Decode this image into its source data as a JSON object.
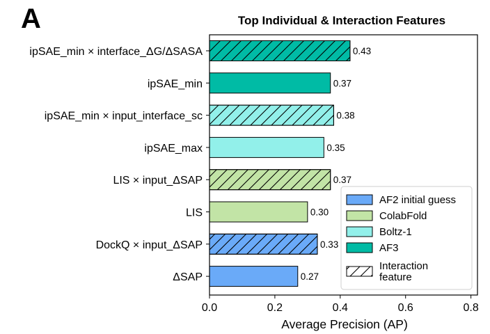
{
  "panel_label": "A",
  "chart_data": {
    "type": "bar",
    "orientation": "horizontal",
    "title": "Top Individual & Interaction Features",
    "xlabel": "Average Precision (AP)",
    "ylabel": "",
    "xlim": [
      0.0,
      0.82
    ],
    "xticks": [
      "0.0",
      "0.2",
      "0.4",
      "0.6",
      "0.8"
    ],
    "bars": [
      {
        "label": "ipSAE_min × interface_ΔG/ΔSASA",
        "value": 0.43,
        "value_label": "0.43",
        "method": "AF3",
        "interaction": true
      },
      {
        "label": "ipSAE_min",
        "value": 0.37,
        "value_label": "0.37",
        "method": "AF3",
        "interaction": false
      },
      {
        "label": "ipSAE_min × input_interface_sc",
        "value": 0.38,
        "value_label": "0.38",
        "method": "Boltz-1",
        "interaction": true
      },
      {
        "label": "ipSAE_max",
        "value": 0.35,
        "value_label": "0.35",
        "method": "Boltz-1",
        "interaction": false
      },
      {
        "label": "LIS × input_ΔSAP",
        "value": 0.37,
        "value_label": "0.37",
        "method": "ColabFold",
        "interaction": true
      },
      {
        "label": "LIS",
        "value": 0.3,
        "value_label": "0.30",
        "method": "ColabFold",
        "interaction": false
      },
      {
        "label": "DockQ × input_ΔSAP",
        "value": 0.33,
        "value_label": "0.33",
        "method": "AF2 initial guess",
        "interaction": true
      },
      {
        "label": "ΔSAP",
        "value": 0.27,
        "value_label": "0.27",
        "method": "AF2 initial guess",
        "interaction": false
      }
    ],
    "legend": {
      "placement": "bottom-right",
      "entries": [
        {
          "label": "AF2 initial guess",
          "color": "#6aaaf8",
          "hatch": false
        },
        {
          "label": "ColabFold",
          "color": "#c2e4a6",
          "hatch": false
        },
        {
          "label": "Boltz-1",
          "color": "#92f0ea",
          "hatch": false
        },
        {
          "label": "AF3",
          "color": "#00bba5",
          "hatch": false
        },
        {
          "label": "Interaction feature",
          "label_lines": [
            "Interaction",
            "feature"
          ],
          "color": "#ffffff",
          "hatch": true
        }
      ]
    },
    "colors": {
      "AF2 initial guess": "#6aaaf8",
      "ColabFold": "#c2e4a6",
      "Boltz-1": "#92f0ea",
      "AF3": "#00bba5"
    }
  }
}
